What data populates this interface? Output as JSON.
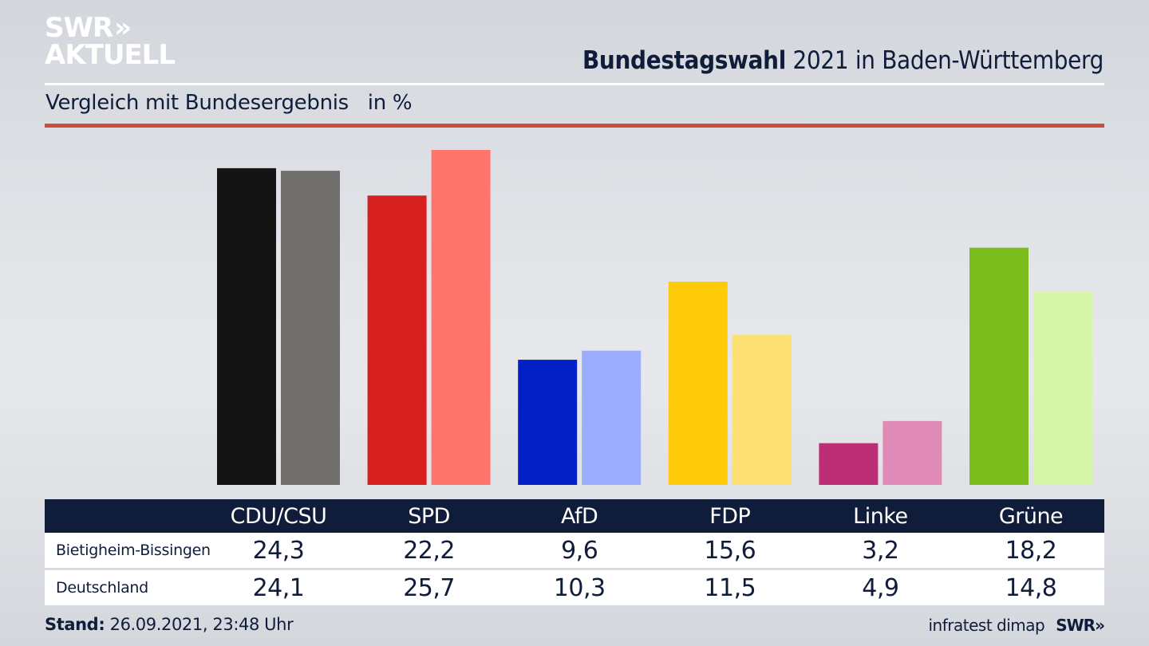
{
  "brand": {
    "logo_line1": "SWR",
    "logo_chevrons": "»",
    "logo_line2": "AKTUELL",
    "footer_source": "infratest dimap",
    "footer_logo": "SWR",
    "footer_logo_chevrons": "»"
  },
  "header": {
    "title_bold": "Bundestagswahl",
    "title_rest": " 2021 in Baden-Württemberg",
    "subtitle": "Vergleich mit Bundesergebnis   in %"
  },
  "footer": {
    "stand_label": "Stand:",
    "stand_value": " 26.09.2021, 23:48 Uhr"
  },
  "colors": {
    "navy": "#0f1c3a",
    "accent_red": "#cc4e3e"
  },
  "chart_data": {
    "type": "bar",
    "title": "Bundestagswahl 2021 in Baden-Württemberg",
    "subtitle": "Vergleich mit Bundesergebnis in %",
    "xlabel": "",
    "ylabel": "%",
    "ylim": [
      0,
      25.7
    ],
    "grid": false,
    "legend": "table-below",
    "categories": [
      "CDU/CSU",
      "SPD",
      "AfD",
      "FDP",
      "Linke",
      "Grüne"
    ],
    "series": [
      {
        "name": "Bietigheim-Bissingen",
        "values": [
          24.3,
          22.2,
          9.6,
          15.6,
          3.2,
          18.2
        ],
        "labels": [
          "24,3",
          "22,2",
          "9,6",
          "15,6",
          "3,2",
          "18,2"
        ],
        "colors": [
          "#141414",
          "#d71f1f",
          "#0320c4",
          "#fecb0a",
          "#be2e74",
          "#7bbd1c"
        ]
      },
      {
        "name": "Deutschland",
        "values": [
          24.1,
          25.7,
          10.3,
          11.5,
          4.9,
          14.8
        ],
        "labels": [
          "24,1",
          "25,7",
          "10,3",
          "11,5",
          "4,9",
          "14,8"
        ],
        "colors": [
          "#72706e",
          "#ff746d",
          "#9badfd",
          "#fde073",
          "#e08bb7",
          "#d6f6a9"
        ]
      }
    ]
  }
}
